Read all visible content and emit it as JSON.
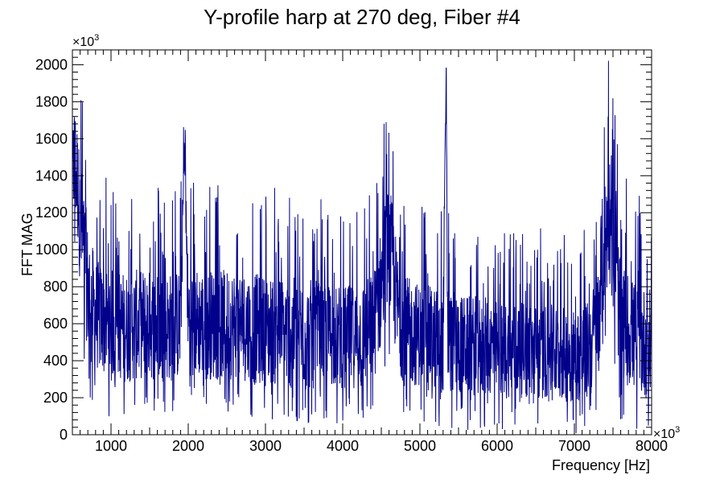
{
  "chart_data": {
    "type": "line",
    "title": "Y-profile harp at 270 deg, Fiber #4",
    "xlabel": "Frequency [Hz]",
    "ylabel": "FFT MAG",
    "x_multiplier_label": "×10",
    "x_multiplier_exp": "3",
    "y_multiplier_label": "×10",
    "y_multiplier_exp": "3",
    "xlim": [
      500,
      8000
    ],
    "ylim": [
      0,
      2080
    ],
    "x_ticks": [
      1000,
      2000,
      3000,
      4000,
      5000,
      6000,
      7000,
      8000
    ],
    "x_tick_labels": [
      "1000",
      "2000",
      "3000",
      "4000",
      "5000",
      "6000",
      "7000",
      "8000"
    ],
    "y_ticks": [
      0,
      200,
      400,
      600,
      800,
      1000,
      1200,
      1400,
      1600,
      1800,
      2000
    ],
    "y_tick_labels": [
      "0",
      "200",
      "400",
      "600",
      "800",
      "1000",
      "1200",
      "1400",
      "1600",
      "1800",
      "2000"
    ],
    "line_color": "#00008b",
    "grid": false,
    "series": [
      {
        "x": [
          500,
          520,
          560,
          600,
          650,
          700,
          800,
          900,
          1000,
          1200,
          1400,
          1600,
          1800,
          1900,
          1950,
          2000,
          2200,
          2400,
          2600,
          2800,
          3000,
          3200,
          3400,
          3600,
          3800,
          4000,
          4200,
          4400,
          4500,
          4550,
          4600,
          4650,
          4700,
          4800,
          5000,
          5200,
          5300,
          5340,
          5360,
          5400,
          5600,
          5800,
          6000,
          6200,
          6400,
          6600,
          6800,
          7000,
          7200,
          7300,
          7350,
          7400,
          7450,
          7500,
          7600,
          7800,
          8000
        ],
        "y": [
          1350,
          1500,
          1400,
          1150,
          1000,
          780,
          650,
          620,
          600,
          580,
          600,
          590,
          580,
          600,
          1560,
          620,
          600,
          590,
          600,
          580,
          560,
          560,
          550,
          540,
          540,
          530,
          530,
          580,
          800,
          950,
          1000,
          900,
          700,
          560,
          540,
          520,
          500,
          1980,
          520,
          500,
          480,
          480,
          470,
          460,
          450,
          450,
          440,
          430,
          460,
          600,
          900,
          1050,
          1200,
          1000,
          620,
          520,
          480
        ],
        "spread": [
          250,
          350,
          300,
          350,
          350,
          350,
          300,
          300,
          300,
          300,
          300,
          300,
          300,
          300,
          100,
          300,
          300,
          300,
          300,
          300,
          300,
          300,
          300,
          300,
          280,
          280,
          280,
          300,
          330,
          350,
          350,
          350,
          320,
          300,
          280,
          280,
          280,
          50,
          280,
          280,
          270,
          270,
          260,
          260,
          260,
          260,
          260,
          260,
          270,
          320,
          350,
          350,
          350,
          350,
          320,
          300,
          300
        ]
      }
    ]
  }
}
